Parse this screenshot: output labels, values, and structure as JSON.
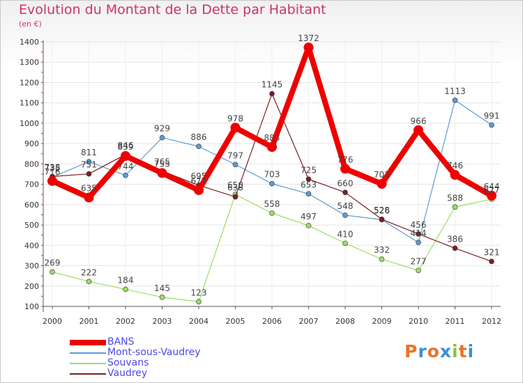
{
  "title": "Evolution du Montant de la Dette par Habitant",
  "subtitle": "(en €)",
  "logo": "Proxiti",
  "chart_data": {
    "type": "line",
    "title": "Evolution du Montant de la Dette par Habitant",
    "ylabel": "(en €)",
    "xlabel": "",
    "x": [
      "2000",
      "2001",
      "2002",
      "2003",
      "2004",
      "2005",
      "2006",
      "2007",
      "2008",
      "2009",
      "2010",
      "2011",
      "2012"
    ],
    "ylim": [
      100,
      1400
    ],
    "yticks": [
      100,
      200,
      300,
      400,
      500,
      600,
      700,
      800,
      900,
      1000,
      1100,
      1200,
      1300,
      1400
    ],
    "grid": true,
    "legend_position": "bottom-left",
    "series": [
      {
        "name": "BANS",
        "color": "#ee0000",
        "values": [
          716,
          635,
          839,
          755,
          671,
          978,
          883,
          1372,
          776,
          702,
          966,
          746,
          644
        ]
      },
      {
        "name": "Mont-sous-Vaudrey",
        "color": "#5b9bd5",
        "values": [
          735,
          811,
          744,
          929,
          886,
          797,
          703,
          653,
          548,
          526,
          414,
          1113,
          991
        ]
      },
      {
        "name": "Souvans",
        "color": "#99dd66",
        "values": [
          269,
          222,
          184,
          145,
          123,
          650,
          558,
          497,
          410,
          332,
          277,
          588,
          627
        ]
      },
      {
        "name": "Vaudrey",
        "color": "#7a2020",
        "values": [
          738,
          751,
          846,
          765,
          695,
          638,
          1145,
          725,
          660,
          528,
          456,
          386,
          321
        ]
      }
    ]
  }
}
